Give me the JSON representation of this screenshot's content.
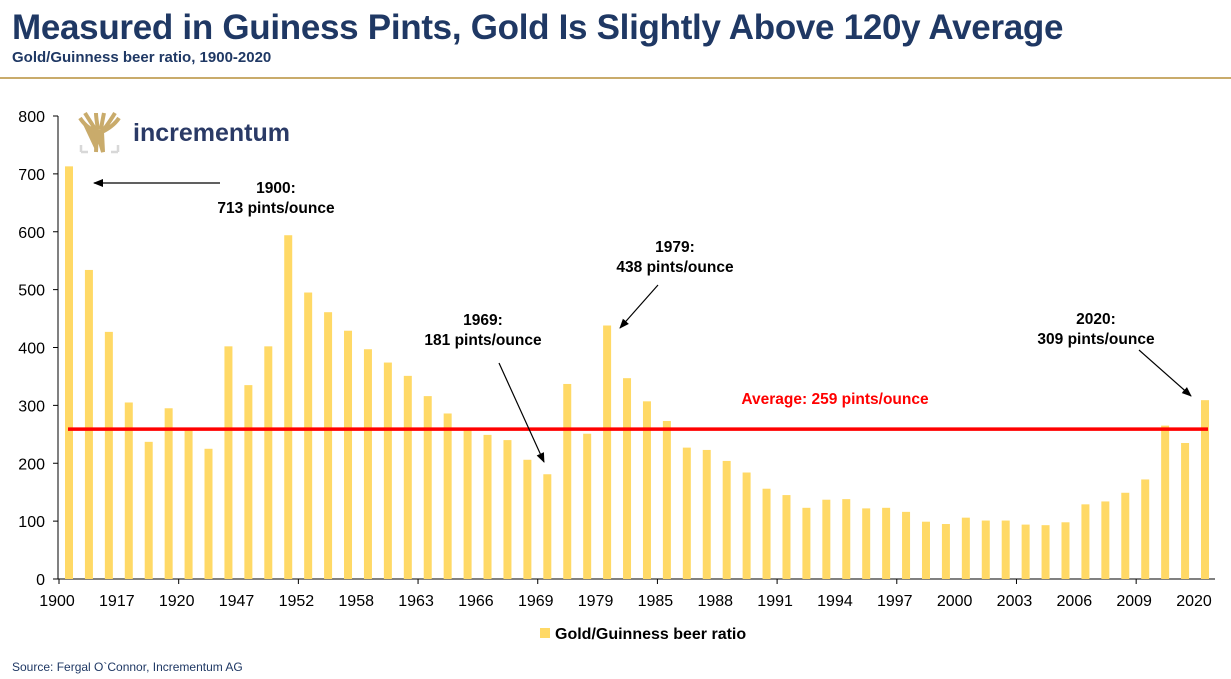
{
  "header": {
    "title": "Measured in Guiness Pints, Gold Is Slightly Above 120y Average",
    "subtitle": "Gold/Guinness beer ratio, 1900-2020"
  },
  "logo": {
    "text": "incrementum"
  },
  "source": "Source: Fergal O`Connor, Incrementum AG",
  "colors": {
    "bar": "#ffd966",
    "average": "#ff0000",
    "title": "#1f3864",
    "rule": "#c9ab6b"
  },
  "chart_data": {
    "type": "bar",
    "title": "Measured in Guiness Pints, Gold Is Slightly Above 120y Average",
    "subtitle": "Gold/Guinness beer ratio, 1900-2020",
    "xlabel": "",
    "ylabel": "",
    "ylim": [
      0,
      800
    ],
    "yticks": [
      0,
      100,
      200,
      300,
      400,
      500,
      600,
      700,
      800
    ],
    "xtick_labels": [
      "1900",
      "1917",
      "1920",
      "1947",
      "1952",
      "1958",
      "1963",
      "1966",
      "1969",
      "1979",
      "1985",
      "1988",
      "1991",
      "1994",
      "1997",
      "2000",
      "2003",
      "2006",
      "2009",
      "2020"
    ],
    "series": [
      {
        "name": "Gold/Guinness beer ratio",
        "values": [
          713,
          534,
          427,
          305,
          237,
          295,
          257,
          225,
          402,
          335,
          402,
          594,
          495,
          461,
          429,
          397,
          374,
          351,
          316,
          286,
          257,
          249,
          240,
          206,
          181,
          337,
          251,
          438,
          347,
          307,
          273,
          227,
          223,
          204,
          184,
          156,
          145,
          123,
          137,
          138,
          122,
          123,
          116,
          99,
          95,
          106,
          101,
          101,
          94,
          93,
          98,
          129,
          134,
          149,
          172,
          265,
          235,
          309
        ]
      }
    ],
    "average": {
      "value": 259,
      "label": "Average: 259 pints/ounce"
    },
    "annotations": [
      {
        "line1": "1900:",
        "line2": "713 pints/ounce"
      },
      {
        "line1": "1969:",
        "line2": "181 pints/ounce"
      },
      {
        "line1": "1979:",
        "line2": "438 pints/ounce"
      },
      {
        "line1": "2020:",
        "line2": "309 pints/ounce"
      }
    ],
    "legend": {
      "label": "Gold/Guinness beer ratio",
      "position": "bottom"
    },
    "grid": false
  }
}
